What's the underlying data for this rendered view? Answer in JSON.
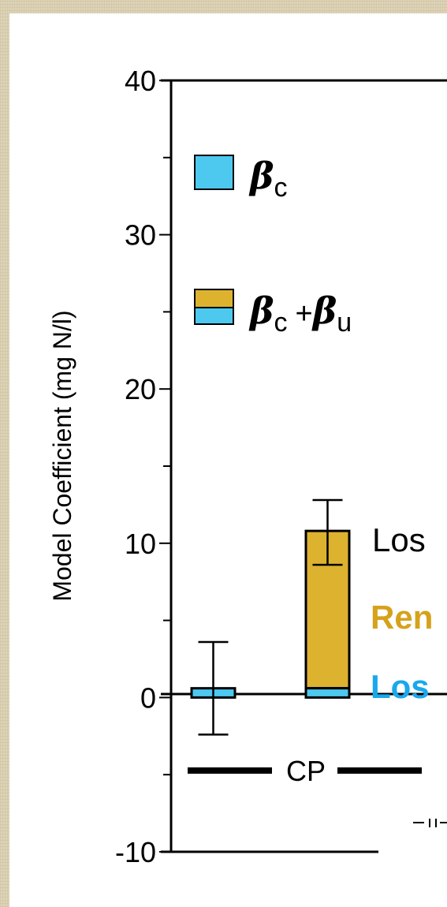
{
  "chart_data": {
    "type": "bar",
    "ylabel": "Model Coefficient (mg N/l)",
    "ylim": [
      -10,
      40
    ],
    "yticks": [
      40,
      30,
      20,
      10,
      0,
      -10
    ],
    "bars": [
      {
        "group": "CP",
        "lower": 0.6,
        "upper": 0.6,
        "err_low": -2.4,
        "err_high": 3.6
      },
      {
        "group": "CP",
        "lower": 0.6,
        "upper": 10.8,
        "err_low": 8.6,
        "err_high": 12.8
      }
    ],
    "legend": [
      {
        "symbol": "β",
        "sub": "c",
        "plus": "",
        "symbol2": "",
        "sub2": ""
      },
      {
        "symbol": "β",
        "sub": "c",
        "plus": "+",
        "symbol2": "β",
        "sub2": "u"
      }
    ],
    "annotations": [
      "Los",
      "Ren",
      "Los"
    ],
    "group_labels": [
      "CP"
    ],
    "colors": {
      "beta_c": "#4dc8ef",
      "beta_u": "#ddb22f",
      "ann_ren": "#d6a21c",
      "ann_los2": "#19a8ec"
    }
  }
}
